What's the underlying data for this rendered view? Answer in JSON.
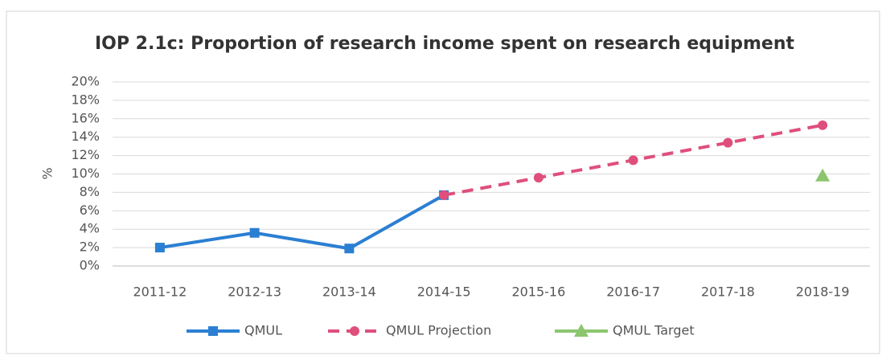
{
  "chart_data": {
    "type": "line",
    "title": "IOP 2.1c: Proportion of research income spent on research equipment",
    "y_label": "%",
    "categories": [
      "2011-12",
      "2012-13",
      "2013-14",
      "2014-15",
      "2015-16",
      "2016-17",
      "2017-18",
      "2018-19"
    ],
    "series": [
      {
        "name": "QMUL",
        "color": "#2b7fd3",
        "marker": "square",
        "line": "solid",
        "values": [
          2.0,
          3.6,
          1.9,
          7.7,
          null,
          null,
          null,
          null
        ]
      },
      {
        "name": "QMUL Projection",
        "color": "#df4f7c",
        "marker": "circle",
        "line": "dashed",
        "values": [
          null,
          null,
          null,
          7.7,
          9.6,
          11.5,
          13.4,
          15.3
        ]
      },
      {
        "name": "QMUL Target",
        "color": "#8cc56e",
        "marker": "triangle",
        "line": "solid",
        "values": [
          null,
          null,
          null,
          null,
          null,
          null,
          null,
          9.8
        ]
      }
    ],
    "ylim": [
      0,
      20
    ],
    "yticks": [
      {
        "value": 0,
        "label": "0%"
      },
      {
        "value": 2,
        "label": "2%"
      },
      {
        "value": 4,
        "label": "4%"
      },
      {
        "value": 6,
        "label": "6%"
      },
      {
        "value": 8,
        "label": "8%"
      },
      {
        "value": 10,
        "label": "10%"
      },
      {
        "value": 12,
        "label": "12%"
      },
      {
        "value": 14,
        "label": "14%"
      },
      {
        "value": 16,
        "label": "16%"
      },
      {
        "value": 18,
        "label": "18%"
      },
      {
        "value": 20,
        "label": "20%"
      }
    ],
    "grid": true,
    "legend": "bottom"
  }
}
